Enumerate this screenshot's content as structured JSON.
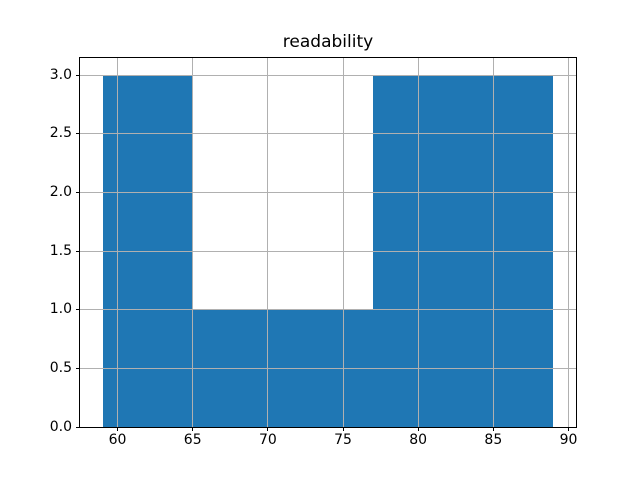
{
  "figure": {
    "background": "#ffffff"
  },
  "chart_data": {
    "type": "bar",
    "subtype": "histogram",
    "title": "readability",
    "xlabel": "",
    "ylabel": "",
    "bin_edges": [
      59,
      65,
      71,
      77,
      83,
      89
    ],
    "counts": [
      3,
      1,
      1,
      3,
      3
    ],
    "xlim": [
      57.5,
      90.5
    ],
    "ylim": [
      0,
      3.15
    ],
    "xticks": [
      {
        "value": 60,
        "label": "60"
      },
      {
        "value": 65,
        "label": "65"
      },
      {
        "value": 70,
        "label": "70"
      },
      {
        "value": 75,
        "label": "75"
      },
      {
        "value": 80,
        "label": "80"
      },
      {
        "value": 85,
        "label": "85"
      },
      {
        "value": 90,
        "label": "90"
      }
    ],
    "yticks": [
      {
        "value": 0.0,
        "label": "0.0"
      },
      {
        "value": 0.5,
        "label": "0.5"
      },
      {
        "value": 1.0,
        "label": "1.0"
      },
      {
        "value": 1.5,
        "label": "1.5"
      },
      {
        "value": 2.0,
        "label": "2.0"
      },
      {
        "value": 2.5,
        "label": "2.5"
      },
      {
        "value": 3.0,
        "label": "3.0"
      }
    ],
    "grid": true,
    "grid_over_bars": true,
    "bar_color": "#1f77b4",
    "grid_color": "#b0b0b0",
    "axis_color": "#000000"
  }
}
